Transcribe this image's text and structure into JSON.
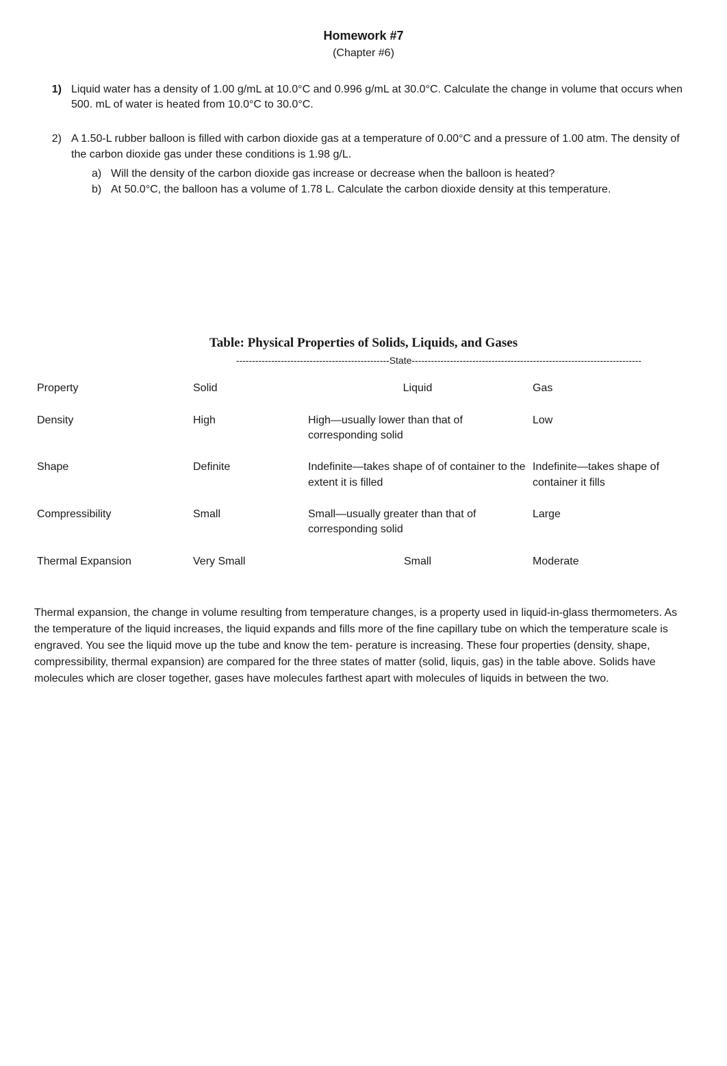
{
  "header": {
    "title": "Homework #7",
    "subtitle": "(Chapter #6)"
  },
  "questions": [
    {
      "num": "1)",
      "num_bold": true,
      "text": "Liquid water has a density of 1.00 g/mL at 10.0°C and 0.996 g/mL at 30.0°C. Calculate the change in volume that occurs when 500. mL of water is heated from 10.0°C to 30.0°C.",
      "subs": []
    },
    {
      "num": "2)",
      "num_bold": false,
      "text": "A 1.50-L rubber balloon is filled with carbon dioxide gas at a temperature of 0.00°C and a pressure of 1.00 atm. The density of the carbon dioxide gas under these conditions is 1.98 g/L.",
      "subs": [
        {
          "num": "a)",
          "text": "Will the density of the carbon dioxide gas increase or decrease when the balloon is heated?"
        },
        {
          "num": "b)",
          "text": "At 50.0°C, the balloon has a volume of 1.78 L. Calculate the carbon dioxide density at this temperature."
        }
      ]
    }
  ],
  "table": {
    "title": "Table: Physical Properties of Solids, Liquids, and Gases",
    "state_label": "State",
    "headers": {
      "property": "Property",
      "solid": "Solid",
      "liquid": "Liquid",
      "gas": "Gas"
    },
    "rows": [
      {
        "property": "Density",
        "solid": "High",
        "liquid": "High—usually lower than that of corresponding solid",
        "gas": "Low"
      },
      {
        "property": "Shape",
        "solid": "Definite",
        "liquid": "Indefinite—takes shape of of container to the extent it is filled",
        "gas": "Indefinite—takes shape of container it fills"
      },
      {
        "property": "Compressibility",
        "solid": "Small",
        "liquid": "Small—usually greater than that of corresponding solid",
        "gas": "Large"
      },
      {
        "property": "Thermal Expansion",
        "solid": "Very Small",
        "liquid": "Small",
        "gas": "Moderate"
      }
    ]
  },
  "paragraph": "Thermal expansion, the change in volume resulting from temperature changes, is a property used in liquid-in-glass thermometers. As the temperature of the liquid increases, the liquid expands and fills more of the fine capillary tube on which the temperature scale is engraved. You see the liquid move up the tube and know the tem- perature is increasing. These four properties (density, shape, compressibility, thermal expansion) are compared for the three states of matter (solid, liquis, gas) in the table above.  Solids have molecules which are closer together, gases have molecules farthest apart with molecules of liquids in between the two."
}
